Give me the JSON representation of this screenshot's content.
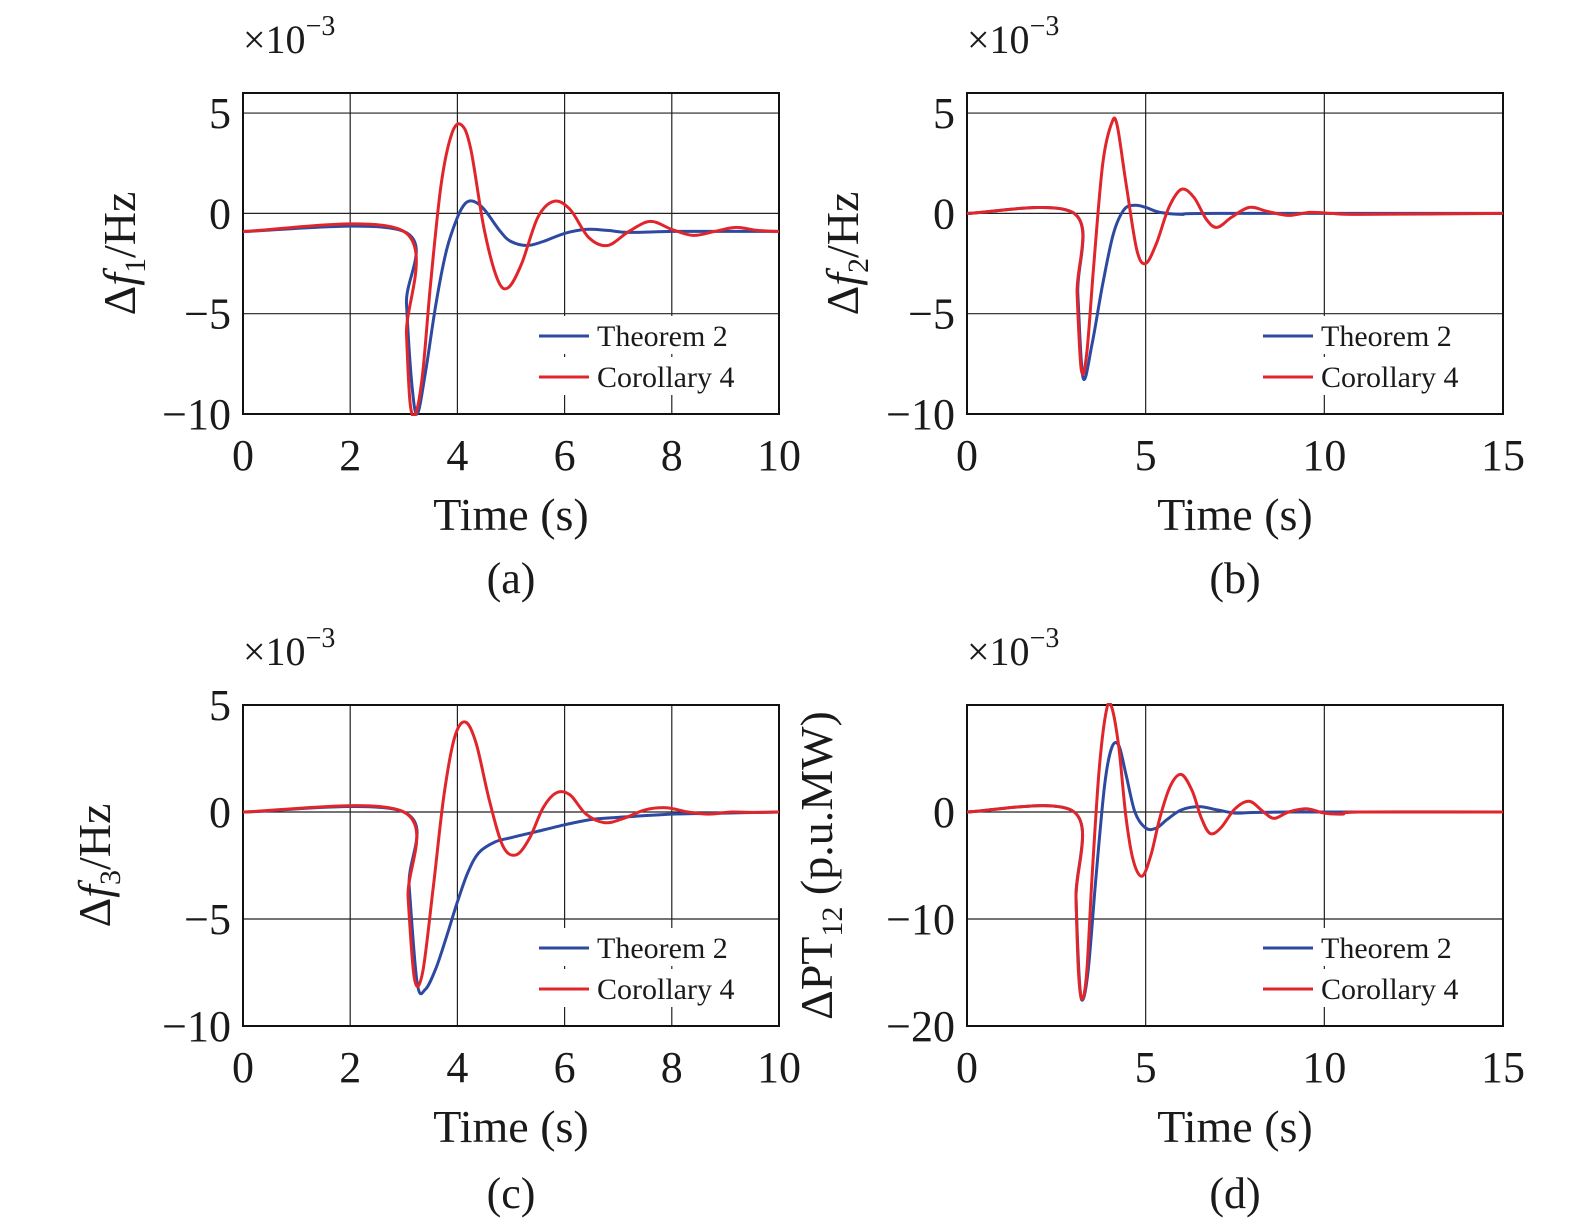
{
  "figure": {
    "captions": [
      "(a)",
      "(b)",
      "(c)",
      "(d)"
    ]
  },
  "chart_data": [
    {
      "type": "line",
      "panel": "(a)",
      "exponent_label": "×10",
      "exponent_power": "−3",
      "ylabel_prefix": "Δ",
      "ylabel_var": "f",
      "ylabel_sub": "1",
      "ylabel_suffix": "/Hz",
      "xlabel": "Time (s)",
      "xlim": [
        0,
        10
      ],
      "ylim": [
        -10,
        6
      ],
      "xticks": [
        0,
        2,
        4,
        6,
        8,
        10
      ],
      "xtick_labels": [
        "0",
        "2",
        "4",
        "6",
        "8",
        "10"
      ],
      "yticks": [
        -10,
        -5,
        0,
        5
      ],
      "ytick_labels": [
        "−10",
        "−5",
        "0",
        "5"
      ],
      "grid": true,
      "legend_position": "bottom-right",
      "colors": {
        "Theorem 2": "#2e4aa0",
        "Corollary 4": "#e0262b"
      },
      "series": [
        {
          "name": "Theorem 2",
          "x": [
            0,
            3.0,
            3.05,
            3.15,
            3.25,
            3.4,
            3.6,
            3.8,
            4.0,
            4.15,
            4.3,
            4.5,
            4.8,
            5.0,
            5.3,
            5.6,
            6.0,
            6.4,
            6.8,
            7.2,
            8.0,
            9.0,
            10.0
          ],
          "y": [
            -0.9,
            -0.9,
            -4.5,
            -8.5,
            -10.0,
            -8.0,
            -4.5,
            -1.8,
            -0.2,
            0.5,
            0.6,
            0.2,
            -0.9,
            -1.4,
            -1.6,
            -1.4,
            -1.0,
            -0.8,
            -0.85,
            -0.95,
            -0.9,
            -0.9,
            -0.9
          ]
        },
        {
          "name": "Corollary 4",
          "x": [
            0,
            3.0,
            3.05,
            3.12,
            3.22,
            3.35,
            3.5,
            3.7,
            3.9,
            4.08,
            4.25,
            4.5,
            4.75,
            4.95,
            5.2,
            5.5,
            5.8,
            6.1,
            6.45,
            6.8,
            7.2,
            7.6,
            8.0,
            8.4,
            8.8,
            9.2,
            9.6,
            10.0
          ],
          "y": [
            -0.9,
            -0.9,
            -6.0,
            -9.5,
            -10.0,
            -8.0,
            -3.5,
            1.5,
            4.0,
            4.4,
            3.2,
            -0.8,
            -3.3,
            -3.7,
            -2.5,
            -0.2,
            0.6,
            0.2,
            -1.2,
            -1.6,
            -0.9,
            -0.4,
            -0.8,
            -1.1,
            -0.9,
            -0.7,
            -0.85,
            -0.9
          ]
        }
      ]
    },
    {
      "type": "line",
      "panel": "(b)",
      "exponent_label": "×10",
      "exponent_power": "−3",
      "ylabel_prefix": "Δ",
      "ylabel_var": "f",
      "ylabel_sub": "2",
      "ylabel_suffix": "/Hz",
      "xlabel": "Time (s)",
      "xlim": [
        0,
        15
      ],
      "ylim": [
        -10,
        6
      ],
      "xticks": [
        0,
        5,
        10,
        15
      ],
      "xtick_labels": [
        "0",
        "5",
        "10",
        "15"
      ],
      "yticks": [
        -10,
        -5,
        0,
        5
      ],
      "ytick_labels": [
        "−10",
        "−5",
        "0",
        "5"
      ],
      "grid": true,
      "legend_position": "bottom-right",
      "colors": {
        "Theorem 2": "#2e4aa0",
        "Corollary 4": "#e0262b"
      },
      "series": [
        {
          "name": "Theorem 2",
          "x": [
            0,
            3.0,
            3.1,
            3.25,
            3.5,
            3.8,
            4.1,
            4.4,
            4.7,
            5.0,
            5.4,
            6.0,
            7.0,
            15.0
          ],
          "y": [
            0,
            0,
            -4.0,
            -8.2,
            -6.5,
            -3.5,
            -1.0,
            0.2,
            0.4,
            0.3,
            0.05,
            -0.05,
            0,
            0
          ]
        },
        {
          "name": "Corollary 4",
          "x": [
            0,
            3.0,
            3.08,
            3.2,
            3.35,
            3.55,
            3.8,
            4.05,
            4.2,
            4.45,
            4.75,
            5.0,
            5.3,
            5.65,
            6.0,
            6.35,
            6.7,
            7.0,
            7.4,
            7.9,
            8.4,
            9.0,
            9.6,
            10.2,
            11.0,
            15.0
          ],
          "y": [
            0,
            0,
            -4.0,
            -7.8,
            -7.0,
            -2.5,
            2.5,
            4.5,
            4.4,
            1.5,
            -1.8,
            -2.5,
            -1.5,
            0.3,
            1.2,
            0.8,
            -0.3,
            -0.7,
            -0.2,
            0.3,
            0.1,
            -0.1,
            0.05,
            0.0,
            -0.05,
            0
          ]
        }
      ]
    },
    {
      "type": "line",
      "panel": "(c)",
      "exponent_label": "×10",
      "exponent_power": "−3",
      "ylabel_prefix": "Δ",
      "ylabel_var": "f",
      "ylabel_sub": "3",
      "ylabel_suffix": "/Hz",
      "xlabel": "Time (s)",
      "xlim": [
        0,
        10
      ],
      "ylim": [
        -10,
        5
      ],
      "xticks": [
        0,
        2,
        4,
        6,
        8,
        10
      ],
      "xtick_labels": [
        "0",
        "2",
        "4",
        "6",
        "8",
        "10"
      ],
      "yticks": [
        -10,
        -5,
        0,
        5
      ],
      "ytick_labels": [
        "−10",
        "−5",
        "0",
        "5"
      ],
      "grid": true,
      "legend_position": "bottom-right",
      "colors": {
        "Theorem 2": "#2e4aa0",
        "Corollary 4": "#e0262b"
      },
      "series": [
        {
          "name": "Theorem 2",
          "x": [
            0,
            3.0,
            3.1,
            3.25,
            3.4,
            3.6,
            3.8,
            4.0,
            4.2,
            4.4,
            4.7,
            5.0,
            5.5,
            6.0,
            6.5,
            7.0,
            8.0,
            9.0,
            10.0
          ],
          "y": [
            0,
            0,
            -3.5,
            -8.0,
            -8.3,
            -7.3,
            -5.8,
            -4.2,
            -2.8,
            -1.9,
            -1.4,
            -1.2,
            -0.9,
            -0.6,
            -0.35,
            -0.25,
            -0.1,
            -0.05,
            0
          ]
        },
        {
          "name": "Corollary 4",
          "x": [
            0,
            3.0,
            3.08,
            3.2,
            3.35,
            3.55,
            3.75,
            3.95,
            4.15,
            4.35,
            4.6,
            4.85,
            5.1,
            5.35,
            5.6,
            5.85,
            6.1,
            6.4,
            6.75,
            7.1,
            7.5,
            7.9,
            8.3,
            8.7,
            9.1,
            9.5,
            10.0
          ],
          "y": [
            0,
            0,
            -4.0,
            -7.8,
            -7.5,
            -3.5,
            0.8,
            3.5,
            4.2,
            3.2,
            0.5,
            -1.6,
            -2.0,
            -1.2,
            0.2,
            0.9,
            0.8,
            -0.1,
            -0.5,
            -0.3,
            0.1,
            0.2,
            0.0,
            -0.1,
            0.0,
            -0.02,
            0
          ]
        }
      ]
    },
    {
      "type": "line",
      "panel": "(d)",
      "exponent_label": "×10",
      "exponent_power": "−3",
      "ylabel_prefix": "ΔPT",
      "ylabel_var": "",
      "ylabel_sub": "12",
      "ylabel_suffix": " (p.u.MW)",
      "xlabel": "Time (s)",
      "xlim": [
        0,
        15
      ],
      "ylim": [
        -20,
        10
      ],
      "xticks": [
        0,
        5,
        10,
        15
      ],
      "xtick_labels": [
        "0",
        "5",
        "10",
        "15"
      ],
      "yticks": [
        -20,
        -10,
        0
      ],
      "ytick_labels": [
        "−20",
        "−10",
        "0"
      ],
      "grid": true,
      "legend_position": "bottom-right",
      "colors": {
        "Theorem 2": "#2e4aa0",
        "Corollary 4": "#e0262b"
      },
      "series": [
        {
          "name": "Theorem 2",
          "x": [
            0,
            3.0,
            3.05,
            3.15,
            3.25,
            3.4,
            3.6,
            3.85,
            4.05,
            4.25,
            4.45,
            4.7,
            5.0,
            5.3,
            5.6,
            6.0,
            6.5,
            7.0,
            7.5,
            8.0,
            9.0,
            10.0,
            15.0
          ],
          "y": [
            0,
            0,
            -8.0,
            -16.0,
            -17.5,
            -14.5,
            -6.5,
            2.5,
            6.0,
            6.2,
            3.5,
            0.0,
            -1.5,
            -1.5,
            -0.7,
            0.2,
            0.5,
            0.2,
            -0.1,
            -0.05,
            0,
            0,
            0
          ]
        },
        {
          "name": "Corollary 4",
          "x": [
            0,
            3.0,
            3.05,
            3.12,
            3.22,
            3.35,
            3.5,
            3.7,
            3.9,
            4.05,
            4.25,
            4.45,
            4.65,
            4.9,
            5.15,
            5.4,
            5.7,
            6.0,
            6.3,
            6.55,
            6.8,
            7.1,
            7.5,
            7.9,
            8.3,
            8.6,
            9.0,
            9.5,
            10.0,
            10.5,
            11.0,
            15.0
          ],
          "y": [
            0,
            0,
            -8.0,
            -15.0,
            -17.5,
            -15.0,
            -6.0,
            4.0,
            9.5,
            9.8,
            6.0,
            -0.5,
            -4.5,
            -6.0,
            -4.0,
            -0.5,
            2.5,
            3.5,
            2.0,
            -0.5,
            -2.0,
            -1.5,
            0.3,
            1.0,
            0.0,
            -0.6,
            0.0,
            0.3,
            -0.1,
            -0.2,
            0,
            0
          ]
        }
      ]
    }
  ]
}
